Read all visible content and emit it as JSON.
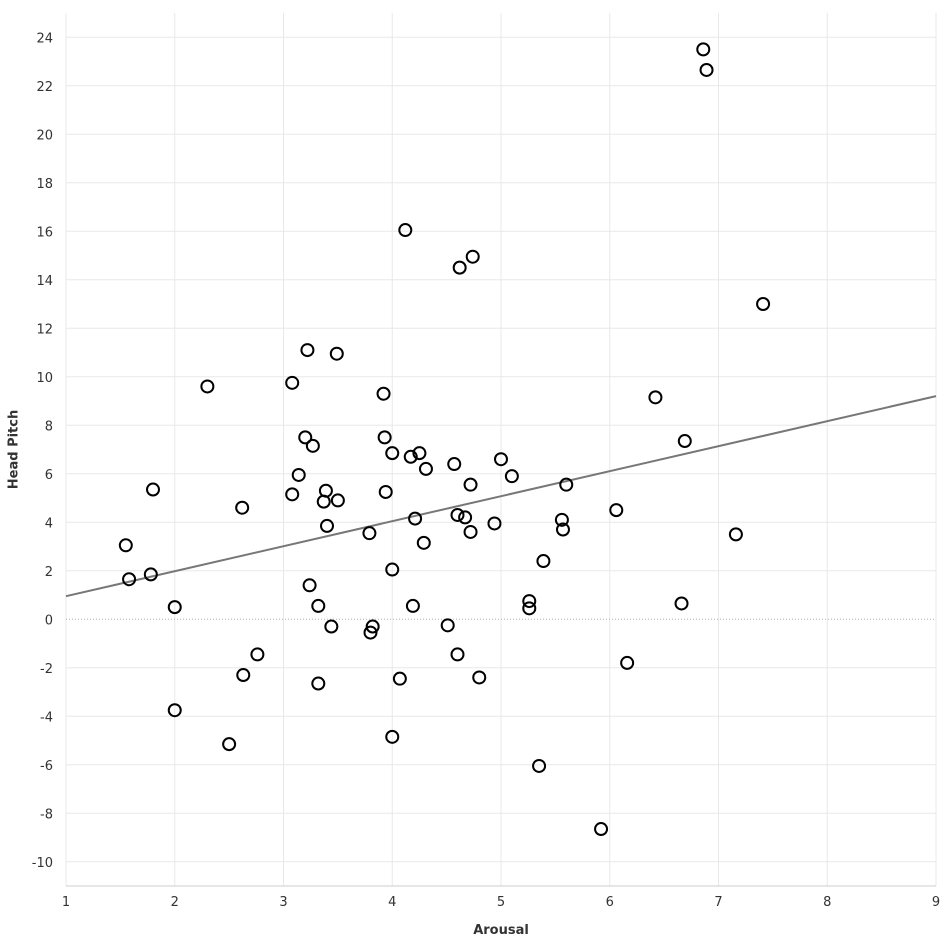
{
  "chart_data": {
    "type": "scatter",
    "xlabel": "Arousal",
    "ylabel": "Head Pitch",
    "xlim": [
      1,
      9
    ],
    "ylim": [
      -11,
      25
    ],
    "x_ticks": [
      1,
      2,
      3,
      4,
      5,
      6,
      7,
      8,
      9
    ],
    "y_ticks": [
      -10,
      -8,
      -6,
      -4,
      -2,
      0,
      2,
      4,
      6,
      8,
      10,
      12,
      14,
      16,
      18,
      20,
      22,
      24
    ],
    "grid": true,
    "reference_line_y": 0,
    "trendline": {
      "x": [
        1,
        9
      ],
      "y": [
        0.95,
        9.2
      ]
    },
    "points": [
      {
        "x": 1.55,
        "y": 3.05
      },
      {
        "x": 1.58,
        "y": 1.65
      },
      {
        "x": 1.78,
        "y": 1.85
      },
      {
        "x": 1.8,
        "y": 5.35
      },
      {
        "x": 2.0,
        "y": 0.5
      },
      {
        "x": 2.0,
        "y": -3.75
      },
      {
        "x": 2.3,
        "y": 9.6
      },
      {
        "x": 2.5,
        "y": -5.15
      },
      {
        "x": 2.62,
        "y": 4.6
      },
      {
        "x": 2.63,
        "y": -2.3
      },
      {
        "x": 2.76,
        "y": -1.45
      },
      {
        "x": 3.08,
        "y": 9.75
      },
      {
        "x": 3.08,
        "y": 5.15
      },
      {
        "x": 3.14,
        "y": 5.95
      },
      {
        "x": 3.2,
        "y": 7.5
      },
      {
        "x": 3.22,
        "y": 11.1
      },
      {
        "x": 3.24,
        "y": 1.4
      },
      {
        "x": 3.27,
        "y": 7.15
      },
      {
        "x": 3.32,
        "y": 0.55
      },
      {
        "x": 3.32,
        "y": -2.65
      },
      {
        "x": 3.37,
        "y": 4.85
      },
      {
        "x": 3.39,
        "y": 5.3
      },
      {
        "x": 3.4,
        "y": 3.85
      },
      {
        "x": 3.44,
        "y": -0.3
      },
      {
        "x": 3.49,
        "y": 10.95
      },
      {
        "x": 3.5,
        "y": 4.9
      },
      {
        "x": 3.79,
        "y": 3.55
      },
      {
        "x": 3.8,
        "y": -0.55
      },
      {
        "x": 3.82,
        "y": -0.3
      },
      {
        "x": 3.92,
        "y": 9.3
      },
      {
        "x": 3.93,
        "y": 7.5
      },
      {
        "x": 3.94,
        "y": 5.25
      },
      {
        "x": 4.0,
        "y": 6.85
      },
      {
        "x": 4.0,
        "y": 2.05
      },
      {
        "x": 4.0,
        "y": -4.85
      },
      {
        "x": 4.07,
        "y": -2.45
      },
      {
        "x": 4.12,
        "y": 16.05
      },
      {
        "x": 4.17,
        "y": 6.7
      },
      {
        "x": 4.19,
        "y": 0.55
      },
      {
        "x": 4.21,
        "y": 4.15
      },
      {
        "x": 4.25,
        "y": 6.85
      },
      {
        "x": 4.29,
        "y": 3.15
      },
      {
        "x": 4.31,
        "y": 6.2
      },
      {
        "x": 4.51,
        "y": -0.25
      },
      {
        "x": 4.57,
        "y": 6.4
      },
      {
        "x": 4.6,
        "y": 4.3
      },
      {
        "x": 4.6,
        "y": -1.45
      },
      {
        "x": 4.62,
        "y": 14.5
      },
      {
        "x": 4.67,
        "y": 4.2
      },
      {
        "x": 4.72,
        "y": 5.55
      },
      {
        "x": 4.72,
        "y": 3.6
      },
      {
        "x": 4.74,
        "y": 14.95
      },
      {
        "x": 4.8,
        "y": -2.4
      },
      {
        "x": 4.94,
        "y": 3.95
      },
      {
        "x": 5.0,
        "y": 6.6
      },
      {
        "x": 5.1,
        "y": 5.9
      },
      {
        "x": 5.26,
        "y": 0.75
      },
      {
        "x": 5.26,
        "y": 0.45
      },
      {
        "x": 5.35,
        "y": -6.05
      },
      {
        "x": 5.39,
        "y": 2.4
      },
      {
        "x": 5.56,
        "y": 4.1
      },
      {
        "x": 5.57,
        "y": 3.7
      },
      {
        "x": 5.6,
        "y": 5.55
      },
      {
        "x": 5.92,
        "y": -8.65
      },
      {
        "x": 6.06,
        "y": 4.5
      },
      {
        "x": 6.16,
        "y": -1.8
      },
      {
        "x": 6.42,
        "y": 9.15
      },
      {
        "x": 6.66,
        "y": 0.65
      },
      {
        "x": 6.69,
        "y": 7.35
      },
      {
        "x": 6.86,
        "y": 23.5
      },
      {
        "x": 6.89,
        "y": 22.65
      },
      {
        "x": 7.16,
        "y": 3.5
      },
      {
        "x": 7.41,
        "y": 13.0
      }
    ]
  }
}
